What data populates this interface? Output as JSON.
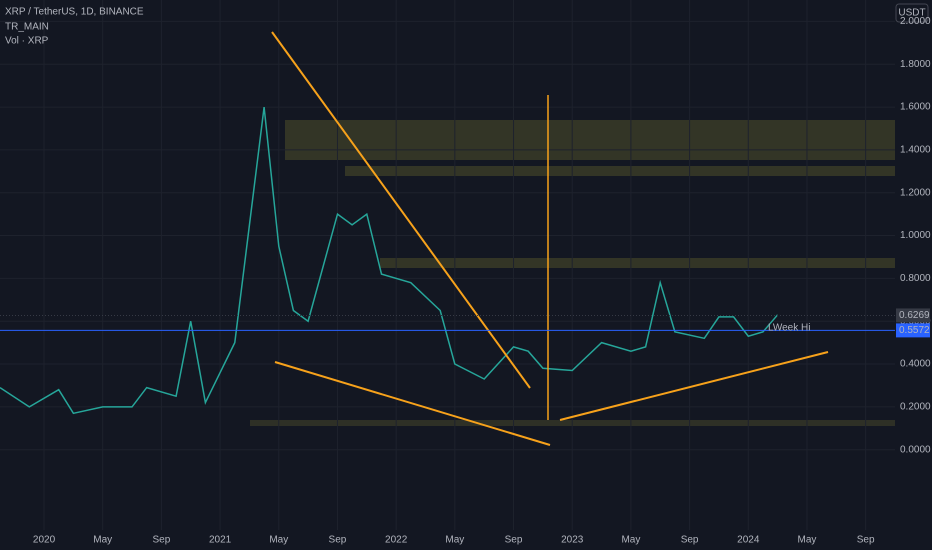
{
  "header": {
    "symbol": "XRP / TetherUS, 1D, BINANCE",
    "indicator": "TR_MAIN",
    "volume": "Vol · XRP",
    "currency": "USDT"
  },
  "chart_data": {
    "type": "line",
    "annotation": "LWeek Hi",
    "x": [
      "2019-10",
      "2019-12",
      "2020-02",
      "2020-03",
      "2020-05",
      "2020-07",
      "2020-08",
      "2020-10",
      "2020-11",
      "2020-12",
      "2021-02",
      "2021-04",
      "2021-05",
      "2021-06",
      "2021-07",
      "2021-09",
      "2021-10",
      "2021-11",
      "2021-12",
      "2022-02",
      "2022-04",
      "2022-05",
      "2022-07",
      "2022-09",
      "2022-10",
      "2022-11",
      "2023-01",
      "2023-03",
      "2023-05",
      "2023-06",
      "2023-07",
      "2023-08",
      "2023-10",
      "2023-11",
      "2023-12",
      "2024-01",
      "2024-02",
      "2024-03"
    ],
    "series": [
      {
        "name": "XRP",
        "color": "#26a69a",
        "values": [
          0.29,
          0.2,
          0.28,
          0.17,
          0.2,
          0.2,
          0.29,
          0.25,
          0.6,
          0.22,
          0.5,
          1.6,
          0.95,
          0.65,
          0.6,
          1.1,
          1.05,
          1.1,
          0.82,
          0.78,
          0.65,
          0.4,
          0.33,
          0.48,
          0.46,
          0.38,
          0.37,
          0.5,
          0.46,
          0.48,
          0.78,
          0.55,
          0.52,
          0.62,
          0.62,
          0.53,
          0.55,
          0.63
        ]
      }
    ],
    "price_markers": [
      0.6269,
      0.5572
    ],
    "xlim": [
      "2019-10",
      "2024-11"
    ],
    "xticks": [
      {
        "value": "2020-01",
        "label": "2020"
      },
      {
        "value": "2020-05",
        "label": "May"
      },
      {
        "value": "2020-09",
        "label": "Sep"
      },
      {
        "value": "2021-01",
        "label": "2021"
      },
      {
        "value": "2021-05",
        "label": "May"
      },
      {
        "value": "2021-09",
        "label": "Sep"
      },
      {
        "value": "2022-01",
        "label": "2022"
      },
      {
        "value": "2022-05",
        "label": "May"
      },
      {
        "value": "2022-09",
        "label": "Sep"
      },
      {
        "value": "2023-01",
        "label": "2023"
      },
      {
        "value": "2023-05",
        "label": "May"
      },
      {
        "value": "2023-09",
        "label": "Sep"
      },
      {
        "value": "2024-01",
        "label": "2024"
      },
      {
        "value": "2024-05",
        "label": "May"
      },
      {
        "value": "2024-09",
        "label": "Sep"
      }
    ],
    "ylim": [
      -0.375,
      2.1
    ],
    "yticks": [
      {
        "value": 0,
        "label": "0.0000"
      },
      {
        "value": 0.2,
        "label": "0.2000"
      },
      {
        "value": 0.4,
        "label": "0.4000"
      },
      {
        "value": 0.6,
        "label": "0.6000"
      },
      {
        "value": 0.8,
        "label": "0.8000"
      },
      {
        "value": 1,
        "label": "1.0000"
      },
      {
        "value": 1.2,
        "label": "1.2000"
      },
      {
        "value": 1.4,
        "label": "1.4000"
      },
      {
        "value": 1.6,
        "label": "1.6000"
      },
      {
        "value": 1.8,
        "label": "1.8000"
      },
      {
        "value": 2,
        "label": "2.0000"
      }
    ]
  }
}
